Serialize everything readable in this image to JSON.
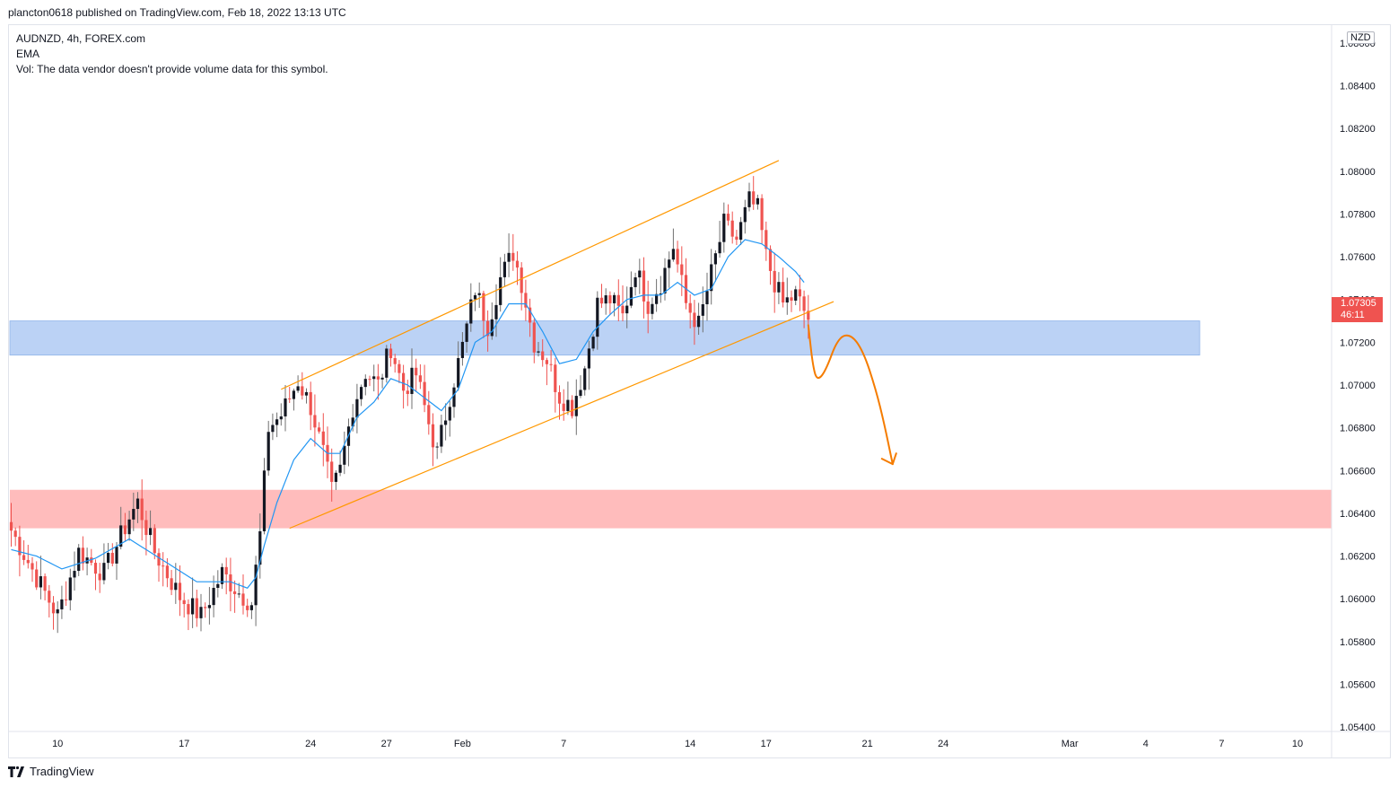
{
  "header": {
    "credit": "plancton0618 published on TradingView.com, Feb 18, 2022 13:13 UTC"
  },
  "legend": {
    "symbol": "AUDNZD, 4h, FOREX.com",
    "indicator": "EMA",
    "volume_note": "Vol: The data vendor doesn't provide volume data for this symbol."
  },
  "price_axis": {
    "currency": "NZD",
    "last_price": "1.07305",
    "countdown": "46:11"
  },
  "footer": {
    "brand": "TradingView"
  },
  "colors": {
    "up": "#131722",
    "down": "#ef5350",
    "wick_up": "#131722",
    "ema": "#2196f3",
    "channel": "#ff9800",
    "drawing": "#f57c00",
    "resistance_zone": "#bbd2f5",
    "support_zone": "#ffbcbc"
  },
  "chart_data": {
    "type": "candlestick",
    "symbol": "AUDNZD",
    "timeframe": "4h",
    "ylim": [
      1.053,
      1.087
    ],
    "y_ticks": [
      "1.05400",
      "1.05600",
      "1.05800",
      "1.06000",
      "1.06200",
      "1.06400",
      "1.06600",
      "1.06800",
      "1.07000",
      "1.07200",
      "1.07400",
      "1.07600",
      "1.07800",
      "1.08000",
      "1.08200",
      "1.08400",
      "1.08600"
    ],
    "x_ticks": [
      {
        "label": "10",
        "index": 11
      },
      {
        "label": "17",
        "index": 41
      },
      {
        "label": "24",
        "index": 71
      },
      {
        "label": "27",
        "index": 89
      },
      {
        "label": "Feb",
        "index": 107
      },
      {
        "label": "7",
        "index": 131
      },
      {
        "label": "14",
        "index": 161
      },
      {
        "label": "17",
        "index": 179
      },
      {
        "label": "21",
        "index": 203
      },
      {
        "label": "24",
        "index": 221
      },
      {
        "label": "Mar",
        "index": 251
      },
      {
        "label": "4",
        "index": 269
      },
      {
        "label": "7",
        "index": 287
      },
      {
        "label": "10",
        "index": 305
      }
    ],
    "candle_count": 190,
    "keypoints": [
      [
        0,
        1.0632
      ],
      [
        6,
        1.061
      ],
      [
        11,
        1.0592
      ],
      [
        16,
        1.0622
      ],
      [
        22,
        1.0612
      ],
      [
        28,
        1.0638
      ],
      [
        30,
        1.0645
      ],
      [
        34,
        1.0622
      ],
      [
        40,
        1.0601
      ],
      [
        45,
        1.0592
      ],
      [
        50,
        1.0612
      ],
      [
        54,
        1.0603
      ],
      [
        57,
        1.0598
      ],
      [
        59,
        1.063
      ],
      [
        61,
        1.068
      ],
      [
        64,
        1.0686
      ],
      [
        68,
        1.0702
      ],
      [
        71,
        1.069
      ],
      [
        74,
        1.0668
      ],
      [
        76,
        1.065
      ],
      [
        78,
        1.066
      ],
      [
        81,
        1.069
      ],
      [
        84,
        1.0706
      ],
      [
        87,
        1.07
      ],
      [
        90,
        1.0718
      ],
      [
        93,
        1.0698
      ],
      [
        96,
        1.0705
      ],
      [
        99,
        1.0682
      ],
      [
        101,
        1.0668
      ],
      [
        104,
        1.0695
      ],
      [
        107,
        1.0718
      ],
      [
        110,
        1.0745
      ],
      [
        113,
        1.0728
      ],
      [
        116,
        1.075
      ],
      [
        119,
        1.0762
      ],
      [
        121,
        1.0748
      ],
      [
        124,
        1.072
      ],
      [
        127,
        1.0712
      ],
      [
        130,
        1.0695
      ],
      [
        133,
        1.069
      ],
      [
        136,
        1.0708
      ],
      [
        139,
        1.0738
      ],
      [
        142,
        1.074
      ],
      [
        145,
        1.0732
      ],
      [
        148,
        1.0755
      ],
      [
        151,
        1.0738
      ],
      [
        154,
        1.0748
      ],
      [
        157,
        1.0765
      ],
      [
        160,
        1.0738
      ],
      [
        163,
        1.0728
      ],
      [
        166,
        1.0752
      ],
      [
        169,
        1.0775
      ],
      [
        172,
        1.0768
      ],
      [
        175,
        1.0786
      ],
      [
        177,
        1.0782
      ],
      [
        179,
        1.076
      ],
      [
        181,
        1.0748
      ],
      [
        183,
        1.0738
      ],
      [
        186,
        1.0742
      ],
      [
        189,
        1.0731
      ]
    ],
    "ema_keypoints": [
      [
        0,
        1.0623
      ],
      [
        6,
        1.062
      ],
      [
        12,
        1.0614
      ],
      [
        20,
        1.0619
      ],
      [
        28,
        1.0628
      ],
      [
        36,
        1.0618
      ],
      [
        44,
        1.0608
      ],
      [
        52,
        1.0608
      ],
      [
        56,
        1.0605
      ],
      [
        58,
        1.061
      ],
      [
        60,
        1.0625
      ],
      [
        63,
        1.0645
      ],
      [
        67,
        1.0665
      ],
      [
        71,
        1.0675
      ],
      [
        75,
        1.0668
      ],
      [
        78,
        1.0668
      ],
      [
        82,
        1.0685
      ],
      [
        86,
        1.0692
      ],
      [
        90,
        1.0703
      ],
      [
        94,
        1.07
      ],
      [
        98,
        1.0694
      ],
      [
        102,
        1.0688
      ],
      [
        106,
        1.0698
      ],
      [
        110,
        1.072
      ],
      [
        114,
        1.0725
      ],
      [
        118,
        1.0738
      ],
      [
        122,
        1.0738
      ],
      [
        126,
        1.0725
      ],
      [
        130,
        1.071
      ],
      [
        134,
        1.0712
      ],
      [
        138,
        1.0725
      ],
      [
        142,
        1.0733
      ],
      [
        146,
        1.074
      ],
      [
        150,
        1.0742
      ],
      [
        154,
        1.0742
      ],
      [
        158,
        1.0748
      ],
      [
        162,
        1.0742
      ],
      [
        166,
        1.0745
      ],
      [
        170,
        1.076
      ],
      [
        174,
        1.0768
      ],
      [
        178,
        1.0766
      ],
      [
        182,
        1.076
      ],
      [
        186,
        1.0753
      ],
      [
        188,
        1.0748
      ]
    ],
    "channel_upper": [
      [
        64,
        1.0698
      ],
      [
        182,
        1.0805
      ]
    ],
    "channel_lower": [
      [
        66,
        1.0633
      ],
      [
        195,
        1.0739
      ]
    ],
    "resistance_zone": [
      1.0714,
      1.073
    ],
    "support_zone": [
      1.0633,
      1.0651
    ],
    "projection_path": [
      [
        189,
        1.0728
      ],
      [
        190,
        1.071
      ],
      [
        191,
        1.0702
      ],
      [
        193,
        1.0706
      ],
      [
        196,
        1.0722
      ],
      [
        199,
        1.0724
      ],
      [
        202,
        1.0716
      ],
      [
        205,
        1.0698
      ],
      [
        207,
        1.0682
      ],
      [
        209,
        1.0663
      ]
    ],
    "projection_arrow_tip": [
      209,
      1.0663
    ],
    "last_price": 1.07305
  }
}
